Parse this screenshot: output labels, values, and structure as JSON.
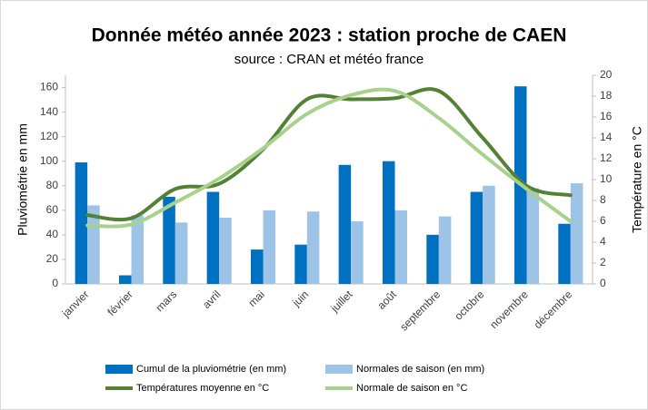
{
  "chart_data": {
    "type": "bar_line",
    "title": "Donnée météo année 2023 : station proche de CAEN",
    "subtitle": "source : CRAN et météo france",
    "y_label": "Pluviométrie en mm",
    "y2_label": "Température en °C",
    "categories": [
      "janvier",
      "février",
      "mars",
      "avril",
      "mai",
      "juin",
      "juillet",
      "août",
      "septembre",
      "octobre",
      "novembre",
      "décembre"
    ],
    "series": [
      {
        "name": "Cumul de la pluviométrie (en mm)",
        "type": "bar",
        "color": "#0070c0",
        "values": [
          99,
          7,
          71,
          75,
          28,
          32,
          97,
          100,
          40,
          75,
          161,
          49
        ]
      },
      {
        "name": "Normales de saison (en mm)",
        "type": "bar",
        "color": "#9dc3e6",
        "values": [
          64,
          56,
          50,
          54,
          60,
          59,
          51,
          60,
          55,
          80,
          78,
          82
        ]
      },
      {
        "name": "Températures moyenne en °C",
        "type": "line",
        "axis": "y2",
        "color": "#538135",
        "values": [
          6.6,
          6.3,
          9.1,
          9.6,
          12.9,
          17.7,
          17.7,
          17.8,
          18.5,
          14,
          9.4,
          8.5
        ]
      },
      {
        "name": "Normale de saison en °C",
        "type": "line",
        "axis": "y2",
        "color": "#a9d18e",
        "values": [
          5.6,
          5.7,
          7.8,
          10.1,
          13,
          16.3,
          18.1,
          18.5,
          15.9,
          12.4,
          9.1,
          6
        ]
      }
    ],
    "ylim": [
      0,
      170
    ],
    "yticks": [
      0,
      20,
      40,
      60,
      80,
      100,
      120,
      140,
      160
    ],
    "y2lim": [
      0,
      20
    ],
    "y2ticks": [
      0,
      2,
      4,
      6,
      8,
      10,
      12,
      14,
      16,
      18,
      20
    ]
  }
}
